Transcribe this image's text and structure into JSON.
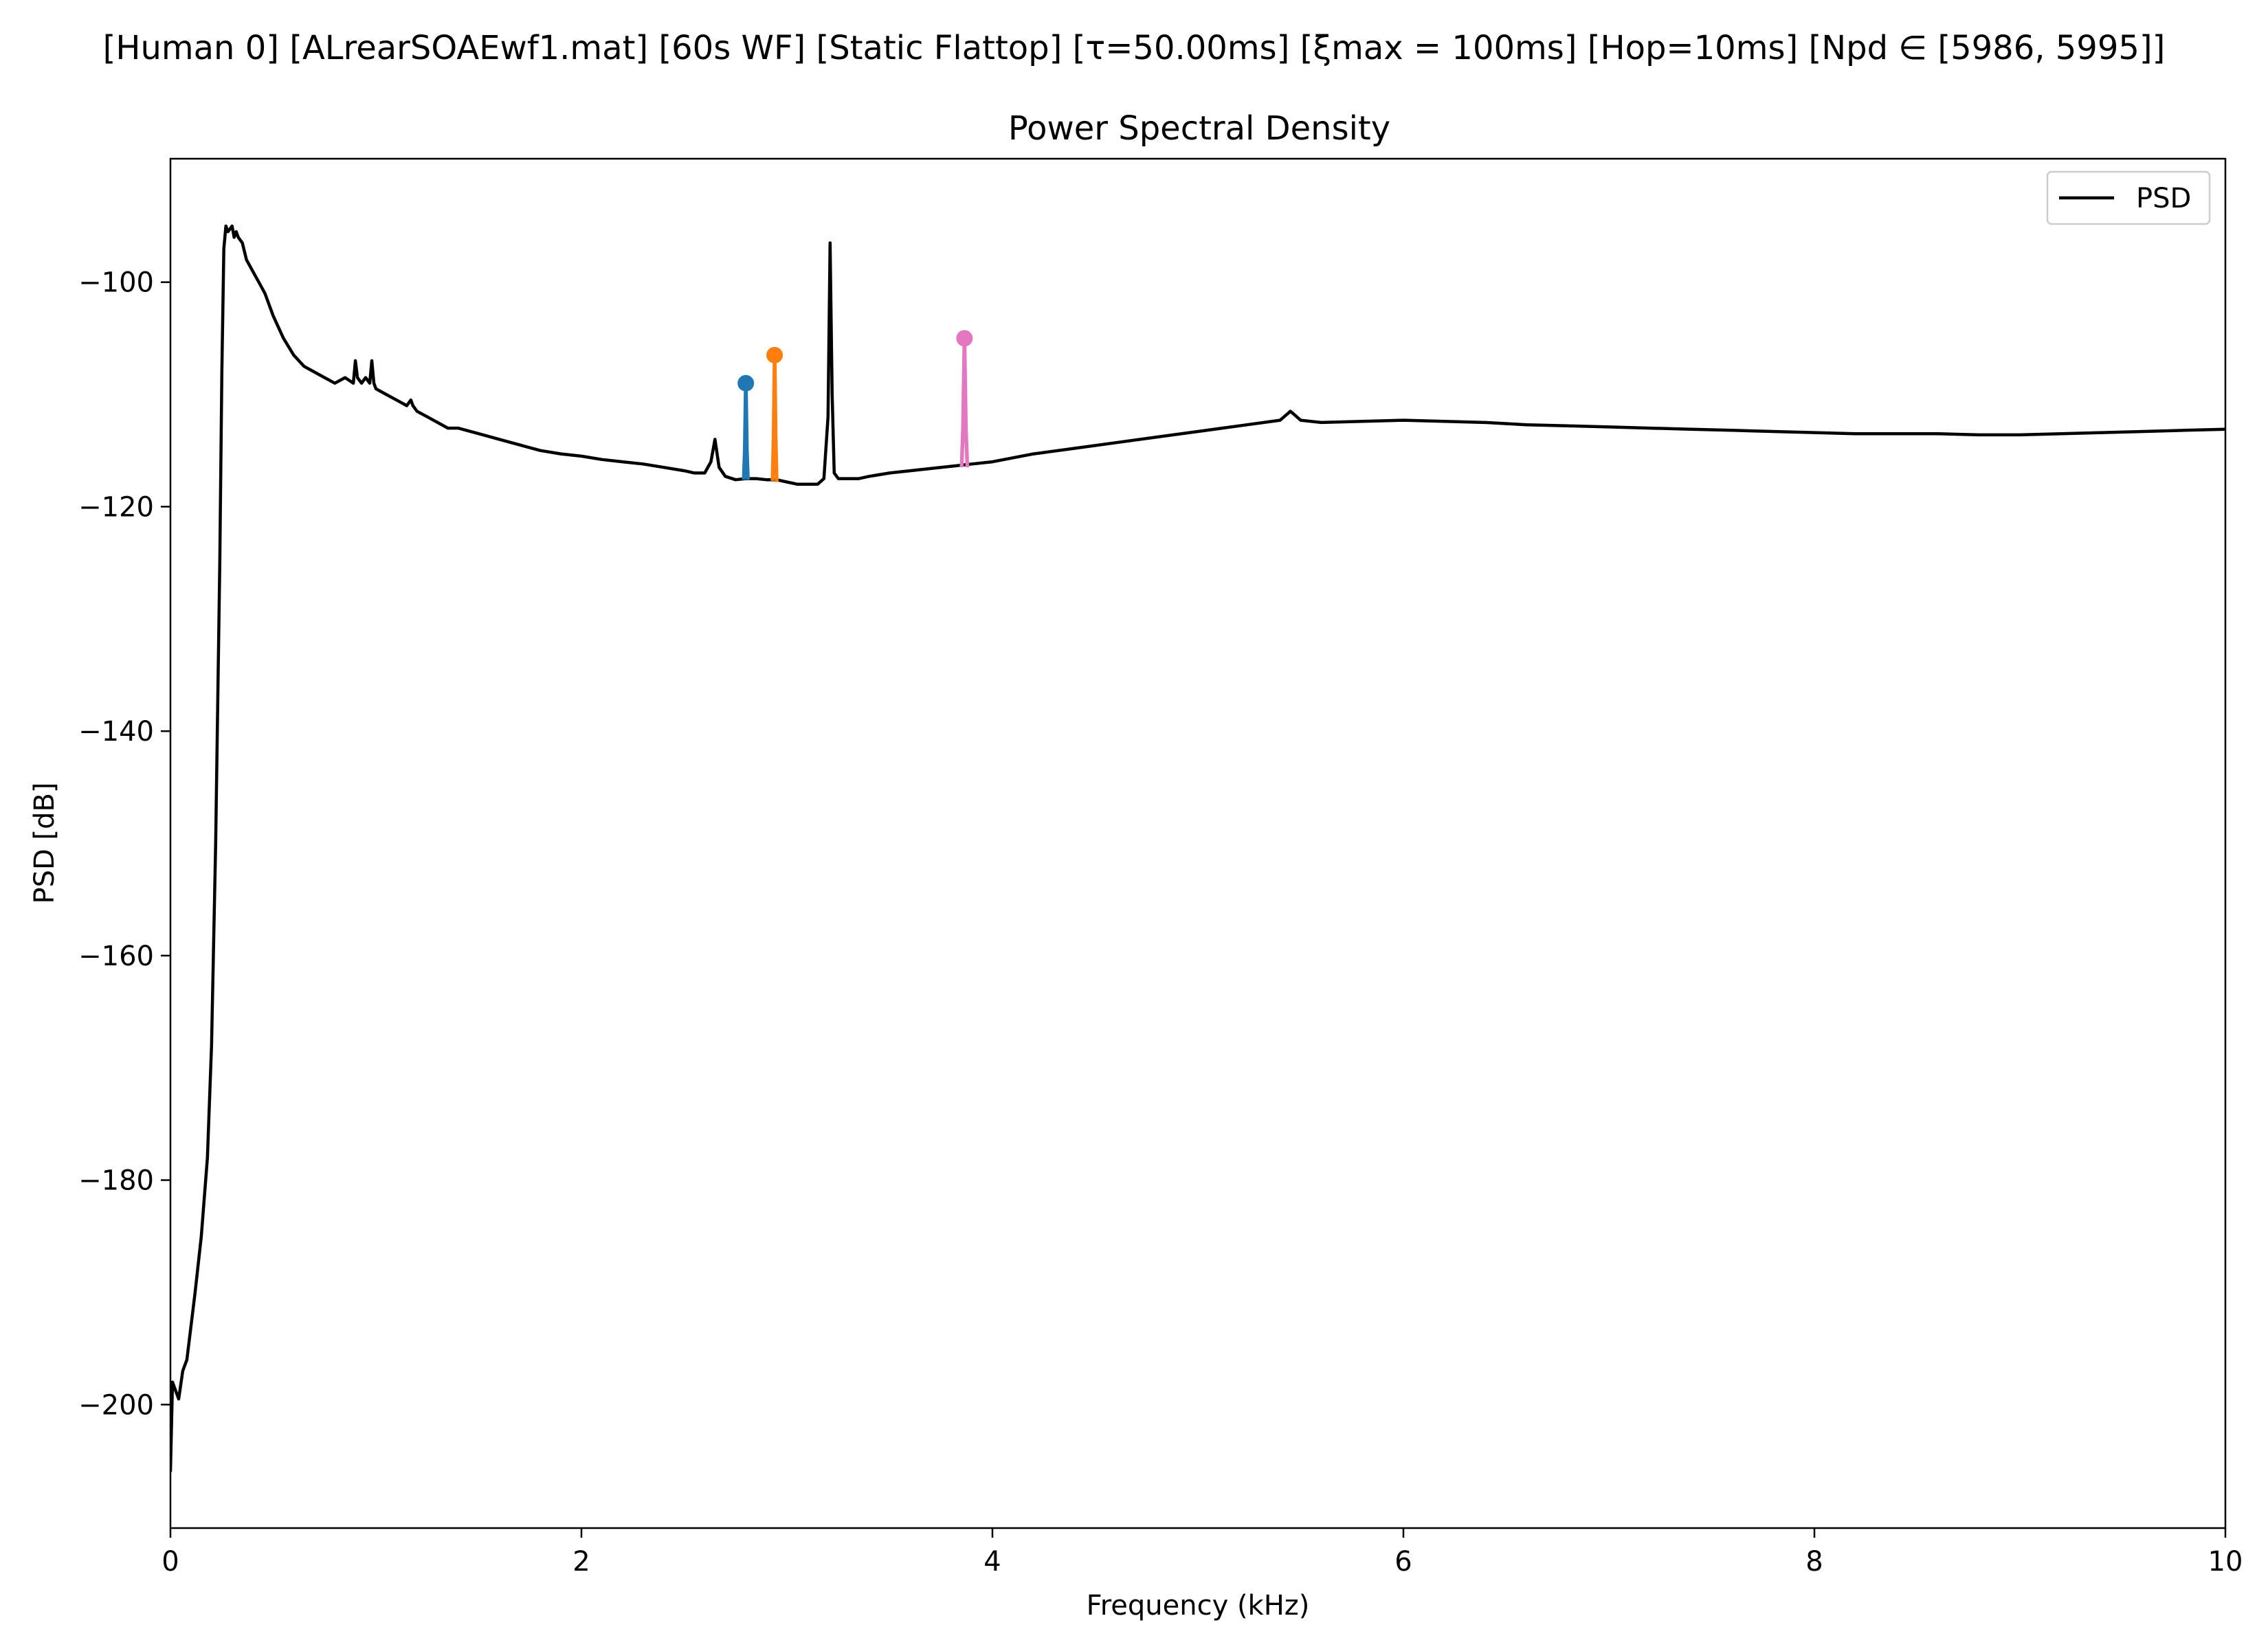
{
  "suptitle": "[Human 0]   [ALrearSOAEwf1.mat]   [60s WF]   [Static Flattop]   [τ=50.00ms]   [ξmax = 100ms]   [Hop=10ms]   [Npd ∈ [5986, 5995]]",
  "chart_data": {
    "type": "line",
    "title": "Power Spectral Density",
    "xlabel": "Frequency (kHz)",
    "ylabel": "PSD [dB]",
    "xlim": [
      0,
      10
    ],
    "ylim": [
      -211,
      -89
    ],
    "xticks": [
      0,
      2,
      4,
      6,
      8,
      10
    ],
    "xtick_labels": [
      "0",
      "2",
      "4",
      "6",
      "8",
      "10"
    ],
    "yticks": [
      -200,
      -180,
      -160,
      -140,
      -120,
      -100
    ],
    "ytick_labels": [
      "−200",
      "−180",
      "−160",
      "−140",
      "−120",
      "−100"
    ],
    "grid": false,
    "legend": {
      "position": "top-right",
      "entries": [
        "PSD"
      ]
    },
    "series": [
      {
        "name": "PSD",
        "color": "#000000",
        "x": [
          0.0,
          0.01,
          0.02,
          0.04,
          0.06,
          0.08,
          0.1,
          0.12,
          0.15,
          0.18,
          0.2,
          0.22,
          0.24,
          0.25,
          0.26,
          0.27,
          0.28,
          0.3,
          0.31,
          0.32,
          0.33,
          0.35,
          0.37,
          0.4,
          0.43,
          0.46,
          0.5,
          0.55,
          0.6,
          0.65,
          0.7,
          0.75,
          0.8,
          0.85,
          0.89,
          0.9,
          0.91,
          0.93,
          0.95,
          0.97,
          0.98,
          0.99,
          1.0,
          1.05,
          1.1,
          1.15,
          1.17,
          1.18,
          1.2,
          1.25,
          1.3,
          1.35,
          1.4,
          1.5,
          1.6,
          1.7,
          1.8,
          1.9,
          2.0,
          2.1,
          2.2,
          2.3,
          2.4,
          2.5,
          2.55,
          2.6,
          2.63,
          2.65,
          2.67,
          2.7,
          2.75,
          2.8,
          2.85,
          2.9,
          2.95,
          3.0,
          3.05,
          3.1,
          3.15,
          3.18,
          3.2,
          3.21,
          3.22,
          3.23,
          3.25,
          3.3,
          3.35,
          3.4,
          3.5,
          3.6,
          3.7,
          3.8,
          3.9,
          4.0,
          4.2,
          4.4,
          4.6,
          4.8,
          5.0,
          5.2,
          5.4,
          5.45,
          5.5,
          5.6,
          5.8,
          6.0,
          6.2,
          6.4,
          6.6,
          6.8,
          7.0,
          7.2,
          7.4,
          7.6,
          7.8,
          8.0,
          8.2,
          8.4,
          8.6,
          8.8,
          9.0,
          9.2,
          9.4,
          9.6,
          9.8,
          10.0
        ],
        "y": [
          -206,
          -198,
          -198.5,
          -199.5,
          -197,
          -196,
          -193,
          -190,
          -185,
          -178,
          -168,
          -150,
          -125,
          -108,
          -97,
          -95,
          -95.5,
          -95,
          -96,
          -95.5,
          -96,
          -96.5,
          -98,
          -99,
          -100,
          -101,
          -103,
          -105,
          -106.5,
          -107.5,
          -108,
          -108.5,
          -109,
          -108.5,
          -109,
          -107,
          -108.5,
          -109,
          -108.5,
          -109,
          -107,
          -109,
          -109.5,
          -110,
          -110.5,
          -111,
          -110.5,
          -111,
          -111.5,
          -112,
          -112.5,
          -113,
          -113,
          -113.5,
          -114,
          -114.5,
          -115,
          -115.3,
          -115.5,
          -115.8,
          -116,
          -116.2,
          -116.5,
          -116.8,
          -117,
          -117,
          -116,
          -114,
          -116.5,
          -117.3,
          -117.6,
          -117.5,
          -117.5,
          -117.6,
          -117.6,
          -117.8,
          -118,
          -118,
          -118,
          -117.5,
          -112,
          -96.5,
          -110,
          -117,
          -117.5,
          -117.5,
          -117.5,
          -117.3,
          -117,
          -116.8,
          -116.6,
          -116.4,
          -116.2,
          -116,
          -115.3,
          -114.8,
          -114.3,
          -113.8,
          -113.3,
          -112.8,
          -112.3,
          -111.5,
          -112.3,
          -112.5,
          -112.4,
          -112.3,
          -112.4,
          -112.5,
          -112.7,
          -112.8,
          -112.9,
          -113,
          -113.1,
          -113.2,
          -113.3,
          -113.4,
          -113.5,
          -113.5,
          -113.5,
          -113.6,
          -113.6,
          -113.5,
          -113.4,
          -113.3,
          -113.2,
          -113.1
        ]
      },
      {
        "color": "#1f77b4",
        "x": [
          2.79,
          2.795,
          2.8,
          2.805,
          2.81
        ],
        "y": [
          -117.6,
          -115,
          -109,
          -115,
          -117.6
        ]
      },
      {
        "color": "#ff7f0e",
        "x": [
          2.93,
          2.935,
          2.94,
          2.945,
          2.95
        ],
        "y": [
          -117.7,
          -114,
          -106.5,
          -114,
          -117.8
        ]
      },
      {
        "color": "#e377c2",
        "x": [
          3.85,
          3.857,
          3.864,
          3.871,
          3.878
        ],
        "y": [
          -116.5,
          -113,
          -105,
          -113,
          -116.5
        ]
      }
    ],
    "peak_markers": [
      {
        "color": "#1f77b4",
        "x": 2.8,
        "y": -109
      },
      {
        "color": "#ff7f0e",
        "x": 2.94,
        "y": -106.5
      },
      {
        "color": "#e377c2",
        "x": 3.864,
        "y": -105
      }
    ]
  }
}
